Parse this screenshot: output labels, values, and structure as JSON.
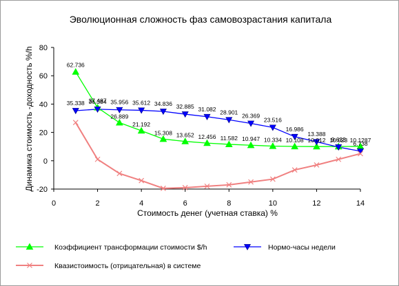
{
  "chart_data": {
    "type": "line",
    "title": "Эволюционная сложность фаз самовозрастания капитала",
    "xlabel": "Стоимость денег (учетная ставка) %",
    "ylabel": "Динамика  стоимость -доходность %/h",
    "xlim": [
      0,
      14
    ],
    "ylim": [
      -20,
      80
    ],
    "xticks": [
      0,
      2,
      4,
      6,
      8,
      10,
      12,
      14
    ],
    "yticks": [
      -20,
      0,
      20,
      40,
      60,
      80
    ],
    "xtick_labels": [
      "0",
      "2",
      "4",
      "6",
      "8",
      "10",
      "12",
      "14"
    ],
    "ytick_labels": [
      "-20",
      "0",
      "20",
      "40",
      "60",
      "80"
    ],
    "grid": false,
    "legend_position": "bottom",
    "series": [
      {
        "name": "Коэффициент  трансформации стоимости $/h",
        "color": "#00ff00",
        "marker": "triangle-up",
        "x": [
          1,
          2,
          3,
          4,
          5,
          6,
          7,
          8,
          9,
          10,
          11,
          12,
          13,
          14
        ],
        "y": [
          62.736,
          37.487,
          26.889,
          21.192,
          15.308,
          13.652,
          12.456,
          11.582,
          10.947,
          10.334,
          10.108,
          10.012,
          10.023,
          10.1287
        ],
        "labels": [
          "62.736",
          "37.487",
          "26.889",
          "21.192",
          "15.308",
          "13.652",
          "12.456",
          "11.582",
          "10.947",
          "10.334",
          "10.108",
          "10.012",
          "10.023",
          "10.1287"
        ]
      },
      {
        "name": "Нормо-часы недели",
        "color": "#0000ff",
        "marker": "triangle-down",
        "x": [
          1,
          2,
          3,
          4,
          5,
          6,
          7,
          8,
          9,
          10,
          11,
          12,
          13,
          14
        ],
        "y": [
          35.338,
          36.384,
          35.956,
          35.612,
          34.836,
          32.885,
          31.082,
          28.901,
          26.369,
          23.516,
          16.986,
          13.388,
          9.633,
          6.738
        ],
        "labels": [
          "35.338",
          "36.384",
          "35.956",
          "35.612",
          "34.836",
          "32.885",
          "31.082",
          "28.901",
          "26.369",
          "23.516",
          "16.986",
          "13.388",
          "9.633",
          "6.738"
        ]
      },
      {
        "name": "Квазистоимость  (отрицательная) в системе",
        "color": "#f08080",
        "marker": "x",
        "x": [
          1,
          2,
          3,
          4,
          5,
          6,
          7,
          8,
          9,
          10,
          11,
          12,
          13,
          14
        ],
        "y": [
          27,
          1,
          -9,
          -14,
          -19.5,
          -19,
          -18,
          -17,
          -15,
          -13,
          -6.5,
          -3,
          1,
          5
        ],
        "labels": []
      }
    ]
  }
}
